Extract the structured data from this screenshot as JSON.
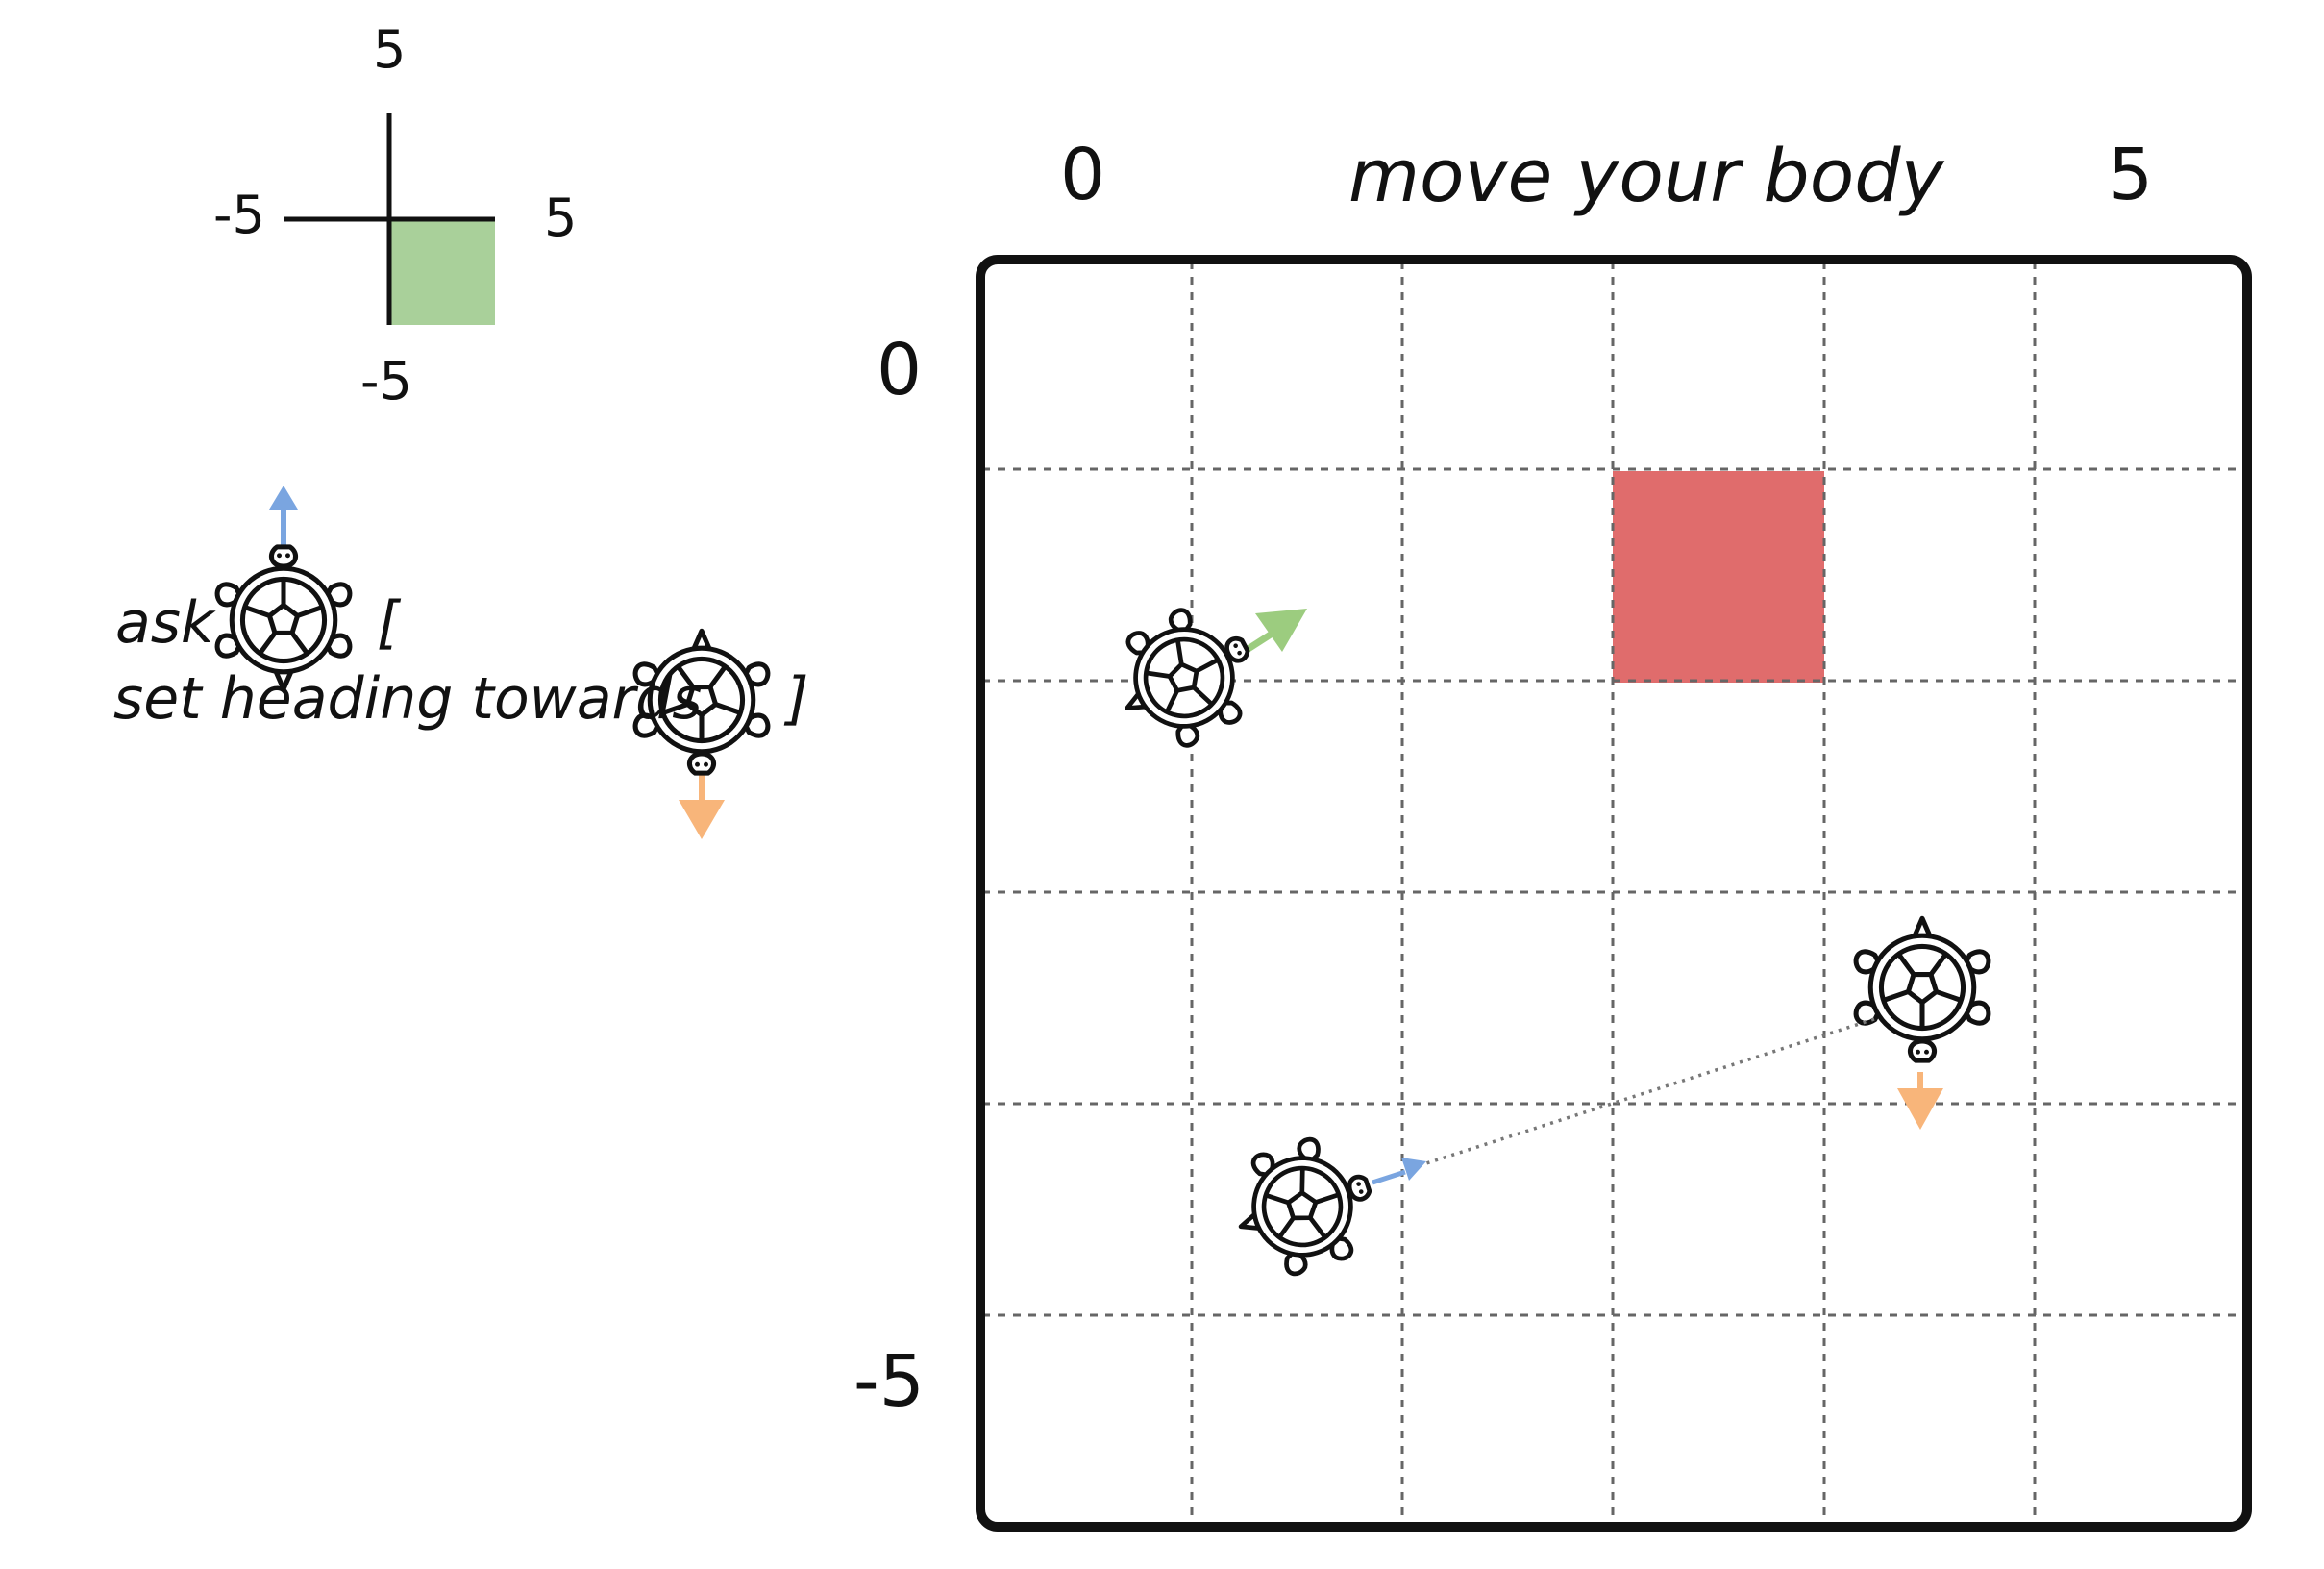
{
  "quadrant_key": {
    "label_top": "5",
    "label_right": "5",
    "label_left": "-5",
    "label_bottom": "-5",
    "highlight_color": "#a9d09a"
  },
  "command": {
    "ask_label": "ask",
    "open_bracket": "[",
    "set_heading_label": "set heading towards",
    "close_bracket": "]"
  },
  "grid": {
    "title": "move your body",
    "x_label_left": "0",
    "x_label_right": "5",
    "y_label_top": "0",
    "y_label_bottom": "-5",
    "target_color": "#e06c6c",
    "green_arrow_color": "#9ccc7f",
    "orange_arrow_color": "#f8b57a",
    "blue_arrow_color": "#7aa5e0"
  }
}
